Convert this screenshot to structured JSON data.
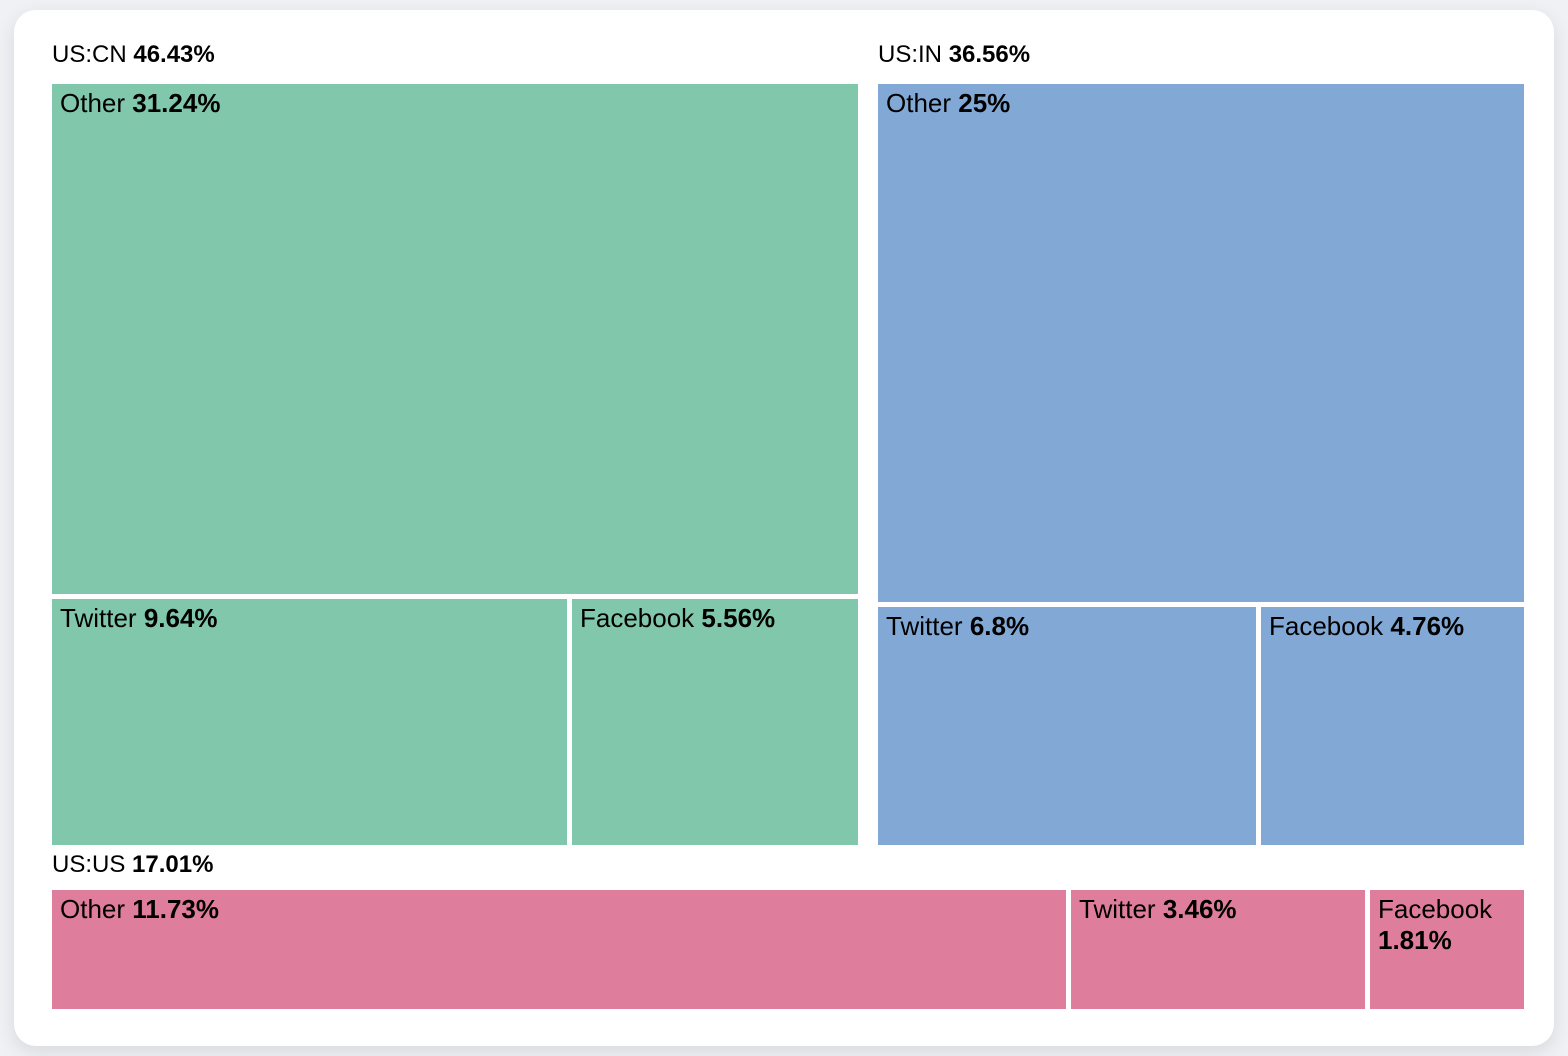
{
  "page": {
    "background_color": "#f0f1f4",
    "card_background_color": "#ffffff"
  },
  "chart_data": {
    "type": "treemap",
    "title": "",
    "unit": "%",
    "legend": "none",
    "groups": [
      {
        "label": "US:CN",
        "value": 46.43,
        "value_label": "46.43%",
        "color": "#80c7ac",
        "children": [
          {
            "label": "Other",
            "value": 31.24,
            "value_label": "31.24%"
          },
          {
            "label": "Twitter",
            "value": 9.64,
            "value_label": "9.64%"
          },
          {
            "label": "Facebook",
            "value": 5.56,
            "value_label": "5.56%"
          }
        ]
      },
      {
        "label": "US:IN",
        "value": 36.56,
        "value_label": "36.56%",
        "color": "#82a9d6",
        "children": [
          {
            "label": "Other",
            "value": 25,
            "value_label": "25%"
          },
          {
            "label": "Twitter",
            "value": 6.8,
            "value_label": "6.8%"
          },
          {
            "label": "Facebook",
            "value": 4.76,
            "value_label": "4.76%"
          }
        ]
      },
      {
        "label": "US:US",
        "value": 17.01,
        "value_label": "17.01%",
        "color": "#df7d9d",
        "children": [
          {
            "label": "Other",
            "value": 11.73,
            "value_label": "11.73%"
          },
          {
            "label": "Twitter",
            "value": 3.46,
            "value_label": "3.46%"
          },
          {
            "label": "Facebook",
            "value": 1.81,
            "value_label": "1.81%"
          }
        ]
      }
    ]
  }
}
